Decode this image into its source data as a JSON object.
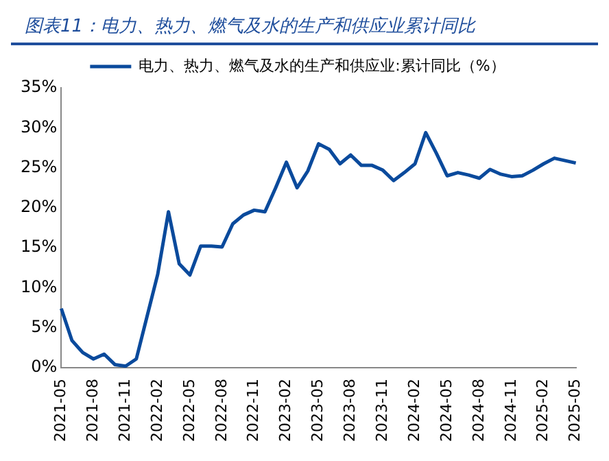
{
  "chart_data": {
    "type": "line",
    "title": "图表11：电力、热力、燃气及水的生产和供应业累计同比",
    "categories": [
      "2021-05",
      null,
      null,
      "2021-08",
      null,
      null,
      "2021-11",
      null,
      null,
      "2022-02",
      null,
      null,
      "2022-05",
      null,
      null,
      "2022-08",
      null,
      null,
      "2022-11",
      null,
      null,
      "2023-02",
      null,
      null,
      "2023-05",
      null,
      null,
      "2023-08",
      null,
      null,
      "2023-11",
      null,
      null,
      "2024-02",
      null,
      null,
      "2024-05",
      null,
      null,
      "2024-08",
      null,
      null,
      "2024-11",
      null,
      null,
      "2025-02",
      null,
      null,
      "2025-05"
    ],
    "series": [
      {
        "name": "电力、热力、燃气及水的生产和供应业:累计同比（%）",
        "color": "#0a4a9c",
        "values": [
          7.4,
          3.4,
          1.9,
          1.1,
          1.7,
          0.4,
          0.2,
          1.1,
          6.4,
          11.7,
          19.5,
          13.0,
          11.6,
          15.2,
          15.2,
          15.1,
          18.0,
          19.1,
          19.7,
          19.5,
          22.5,
          25.7,
          22.5,
          24.6,
          28.0,
          27.3,
          25.5,
          26.6,
          25.3,
          25.3,
          24.7,
          23.4,
          24.4,
          25.5,
          29.4,
          26.8,
          24.0,
          24.4,
          24.1,
          23.7,
          24.8,
          24.2,
          23.9,
          24.0,
          24.7,
          25.5,
          26.2,
          25.9,
          25.6
        ]
      }
    ],
    "ylim": [
      0,
      35
    ],
    "yticks": [
      {
        "value": 0,
        "label": "0%"
      },
      {
        "value": 5,
        "label": "5%"
      },
      {
        "value": 10,
        "label": "10%"
      },
      {
        "value": 15,
        "label": "15%"
      },
      {
        "value": 20,
        "label": "20%"
      },
      {
        "value": 25,
        "label": "25%"
      },
      {
        "value": 30,
        "label": "30%"
      },
      {
        "value": 35,
        "label": "35%"
      }
    ],
    "grid": false,
    "legend": "top",
    "marker": "none",
    "line_style": "solid"
  }
}
